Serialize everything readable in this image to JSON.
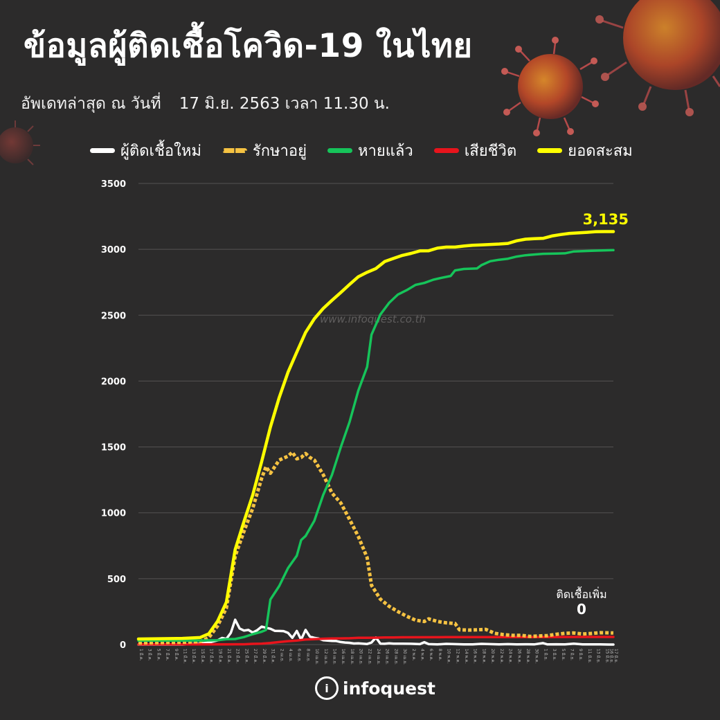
{
  "header": {
    "title": "ข้อมูลผู้ติดเชื้อโควิด-19 ในไทย",
    "updated_label": "อัพเดทล่าสุด ณ วันที่",
    "updated_value": "17 มิ.ย. 2563 เวลา 11.30 น."
  },
  "legend": {
    "items": [
      {
        "label": "ผู้ติดเชื้อใหม่",
        "color": "#ffffff",
        "style": "solid"
      },
      {
        "label": "รักษาอยู่",
        "color": "#f5c242",
        "style": "dashed"
      },
      {
        "label": "หายแล้ว",
        "color": "#16c45a",
        "style": "solid"
      },
      {
        "label": "เสียชีวิต",
        "color": "#e8141c",
        "style": "solid"
      },
      {
        "label": "ยอดสะสม",
        "color": "#ffff00",
        "style": "solid"
      }
    ]
  },
  "annotations": {
    "total_value": "3,135",
    "new_cases_label": "ติดเชื้อเพิ่ม",
    "new_cases_value": "0"
  },
  "watermark": "www.infoquest.co.th",
  "brand": {
    "icon": "info-icon",
    "name": "infoquest"
  },
  "chart_data": {
    "type": "line",
    "ylim": [
      0,
      3500
    ],
    "yticks": [
      0,
      500,
      1000,
      1500,
      2000,
      2500,
      3000,
      3500
    ],
    "grid": true,
    "legend_placement": "top",
    "x_labels": [
      "1 มี.ค.",
      "3 มี.ค.",
      "5 มี.ค.",
      "7 มี.ค.",
      "9 มี.ค.",
      "11 มี.ค.",
      "13 มี.ค.",
      "15 มี.ค.",
      "17 มี.ค.",
      "19 มี.ค.",
      "21 มี.ค.",
      "23 มี.ค.",
      "25 มี.ค.",
      "27 มี.ค.",
      "29 มี.ค.",
      "31 มี.ค.",
      "2 เม.ย.",
      "4 เม.ย.",
      "6 เม.ย.",
      "8 เม.ย.",
      "10 เม.ย.",
      "12 เม.ย.",
      "14 เม.ย.",
      "16 เม.ย.",
      "18 เม.ย.",
      "20 เม.ย.",
      "22 เม.ย.",
      "24 เม.ย.",
      "26 เม.ย.",
      "28 เม.ย.",
      "30 เม.ย.",
      "2 พ.ค.",
      "4 พ.ค.",
      "6 พ.ค.",
      "8 พ.ค.",
      "10 พ.ค.",
      "12 พ.ค.",
      "14 พ.ค.",
      "16 พ.ค.",
      "18 พ.ค.",
      "20 พ.ค.",
      "22 พ.ค.",
      "24 พ.ค.",
      "26 พ.ค.",
      "28 พ.ค.",
      "30 พ.ค.",
      "1 มิ.ย.",
      "3 มิ.ย.",
      "5 มิ.ย.",
      "7 มิ.ย.",
      "9 มิ.ย.",
      "11 มิ.ย.",
      "13 มิ.ย.",
      "15 มิ.ย.",
      "16 มิ.ย.",
      "17 มิ.ย."
    ],
    "x_start": "1 มี.ค.",
    "x_end": "17 มิ.ย.",
    "series": [
      {
        "name": "ยอดสะสม",
        "color": "#ffff00",
        "style": "solid",
        "points": [
          [
            0,
            42
          ],
          [
            10,
            47
          ],
          [
            14,
            53
          ],
          [
            16,
            82
          ],
          [
            18,
            177
          ],
          [
            20,
            322
          ],
          [
            22,
            721
          ],
          [
            24,
            934
          ],
          [
            26,
            1136
          ],
          [
            28,
            1388
          ],
          [
            30,
            1651
          ],
          [
            32,
            1875
          ],
          [
            34,
            2067
          ],
          [
            36,
            2220
          ],
          [
            38,
            2369
          ],
          [
            40,
            2473
          ],
          [
            42,
            2551
          ],
          [
            44,
            2613
          ],
          [
            46,
            2672
          ],
          [
            48,
            2733
          ],
          [
            50,
            2792
          ],
          [
            52,
            2826
          ],
          [
            54,
            2854
          ],
          [
            56,
            2907
          ],
          [
            58,
            2931
          ],
          [
            60,
            2954
          ],
          [
            62,
            2969
          ],
          [
            64,
            2988
          ],
          [
            66,
            2989
          ],
          [
            68,
            3009
          ],
          [
            70,
            3017
          ],
          [
            72,
            3017
          ],
          [
            74,
            3025
          ],
          [
            76,
            3031
          ],
          [
            78,
            3034
          ],
          [
            80,
            3037
          ],
          [
            82,
            3040
          ],
          [
            84,
            3045
          ],
          [
            86,
            3065
          ],
          [
            88,
            3077
          ],
          [
            90,
            3081
          ],
          [
            92,
            3083
          ],
          [
            94,
            3101
          ],
          [
            96,
            3112
          ],
          [
            98,
            3121
          ],
          [
            100,
            3125
          ],
          [
            102,
            3129
          ],
          [
            104,
            3134
          ],
          [
            106,
            3135
          ],
          [
            108,
            3135
          ]
        ]
      },
      {
        "name": "หายแล้ว",
        "color": "#16c45a",
        "style": "solid",
        "points": [
          [
            0,
            30
          ],
          [
            14,
            30
          ],
          [
            18,
            33
          ],
          [
            20,
            41
          ],
          [
            22,
            42
          ],
          [
            24,
            57
          ],
          [
            26,
            79
          ],
          [
            28,
            97
          ],
          [
            29,
            111
          ],
          [
            30,
            342
          ],
          [
            32,
            444
          ],
          [
            34,
            580
          ],
          [
            36,
            674
          ],
          [
            37,
            793
          ],
          [
            38,
            824
          ],
          [
            40,
            940
          ],
          [
            42,
            1135
          ],
          [
            44,
            1288
          ],
          [
            46,
            1497
          ],
          [
            48,
            1689
          ],
          [
            50,
            1928
          ],
          [
            52,
            2108
          ],
          [
            53,
            2352
          ],
          [
            55,
            2505
          ],
          [
            57,
            2594
          ],
          [
            59,
            2657
          ],
          [
            61,
            2690
          ],
          [
            63,
            2730
          ],
          [
            65,
            2745
          ],
          [
            67,
            2769
          ],
          [
            69,
            2784
          ],
          [
            71,
            2798
          ],
          [
            72,
            2840
          ],
          [
            74,
            2851
          ],
          [
            77,
            2855
          ],
          [
            78,
            2880
          ],
          [
            80,
            2910
          ],
          [
            82,
            2921
          ],
          [
            84,
            2929
          ],
          [
            86,
            2945
          ],
          [
            88,
            2955
          ],
          [
            90,
            2961
          ],
          [
            92,
            2966
          ],
          [
            95,
            2968
          ],
          [
            97,
            2970
          ],
          [
            99,
            2984
          ],
          [
            103,
            2989
          ],
          [
            108,
            2994
          ]
        ]
      },
      {
        "name": "รักษาอยู่",
        "color": "#f5c242",
        "style": "dashed",
        "points": [
          [
            0,
            12
          ],
          [
            10,
            17
          ],
          [
            14,
            22
          ],
          [
            16,
            52
          ],
          [
            18,
            142
          ],
          [
            20,
            277
          ],
          [
            22,
            671
          ],
          [
            24,
            859
          ],
          [
            26,
            1035
          ],
          [
            28,
            1262
          ],
          [
            29,
            1350
          ],
          [
            30,
            1300
          ],
          [
            32,
            1400
          ],
          [
            34,
            1430
          ],
          [
            35,
            1460
          ],
          [
            36,
            1410
          ],
          [
            37,
            1420
          ],
          [
            38,
            1450
          ],
          [
            39,
            1420
          ],
          [
            40,
            1400
          ],
          [
            42,
            1290
          ],
          [
            44,
            1150
          ],
          [
            46,
            1075
          ],
          [
            48,
            950
          ],
          [
            50,
            820
          ],
          [
            52,
            660
          ],
          [
            53,
            450
          ],
          [
            55,
            345
          ],
          [
            57,
            290
          ],
          [
            59,
            250
          ],
          [
            61,
            215
          ],
          [
            63,
            185
          ],
          [
            65,
            175
          ],
          [
            66,
            195
          ],
          [
            68,
            175
          ],
          [
            70,
            165
          ],
          [
            72,
            160
          ],
          [
            73,
            112
          ],
          [
            75,
            110
          ],
          [
            77,
            112
          ],
          [
            79,
            115
          ],
          [
            81,
            85
          ],
          [
            83,
            75
          ],
          [
            85,
            70
          ],
          [
            87,
            70
          ],
          [
            89,
            62
          ],
          [
            91,
            65
          ],
          [
            93,
            68
          ],
          [
            95,
            78
          ],
          [
            97,
            85
          ],
          [
            99,
            88
          ],
          [
            101,
            80
          ],
          [
            103,
            84
          ],
          [
            105,
            90
          ],
          [
            108,
            88
          ]
        ]
      },
      {
        "name": "เสียชีวิต",
        "color": "#e8141c",
        "style": "solid",
        "points": [
          [
            0,
            1
          ],
          [
            10,
            1
          ],
          [
            18,
            1
          ],
          [
            20,
            1
          ],
          [
            22,
            2
          ],
          [
            24,
            2
          ],
          [
            26,
            5
          ],
          [
            28,
            7
          ],
          [
            30,
            12
          ],
          [
            32,
            19
          ],
          [
            34,
            26
          ],
          [
            36,
            30
          ],
          [
            38,
            38
          ],
          [
            40,
            41
          ],
          [
            42,
            44
          ],
          [
            44,
            46
          ],
          [
            46,
            47
          ],
          [
            48,
            48
          ],
          [
            50,
            51
          ],
          [
            52,
            51
          ],
          [
            54,
            52
          ],
          [
            56,
            54
          ],
          [
            58,
            54
          ],
          [
            60,
            55
          ],
          [
            70,
            56
          ],
          [
            80,
            56
          ],
          [
            90,
            57
          ],
          [
            100,
            58
          ],
          [
            108,
            58
          ]
        ]
      },
      {
        "name": "ผู้ติดเชื้อใหม่",
        "color": "#ffffff",
        "style": "solid",
        "points": [
          [
            0,
            0
          ],
          [
            10,
            0
          ],
          [
            14,
            6
          ],
          [
            16,
            16
          ],
          [
            18,
            32
          ],
          [
            19,
            50
          ],
          [
            20,
            43
          ],
          [
            21,
            89
          ],
          [
            22,
            188
          ],
          [
            23,
            122
          ],
          [
            24,
            106
          ],
          [
            25,
            111
          ],
          [
            26,
            91
          ],
          [
            27,
            109
          ],
          [
            28,
            136
          ],
          [
            29,
            127
          ],
          [
            30,
            120
          ],
          [
            31,
            104
          ],
          [
            32,
            103
          ],
          [
            33,
            102
          ],
          [
            34,
            89
          ],
          [
            35,
            51
          ],
          [
            36,
            103
          ],
          [
            37,
            38
          ],
          [
            38,
            111
          ],
          [
            39,
            60
          ],
          [
            40,
            51
          ],
          [
            41,
            45
          ],
          [
            42,
            33
          ],
          [
            43,
            30
          ],
          [
            44,
            28
          ],
          [
            45,
            27
          ],
          [
            46,
            19
          ],
          [
            47,
            15
          ],
          [
            48,
            13
          ],
          [
            49,
            8
          ],
          [
            50,
            9
          ],
          [
            51,
            7
          ],
          [
            52,
            4
          ],
          [
            53,
            15
          ],
          [
            54,
            53
          ],
          [
            55,
            7
          ],
          [
            56,
            6
          ],
          [
            57,
            9
          ],
          [
            58,
            7
          ],
          [
            60,
            7
          ],
          [
            62,
            6
          ],
          [
            64,
            3
          ],
          [
            65,
            18
          ],
          [
            66,
            3
          ],
          [
            68,
            1
          ],
          [
            70,
            5
          ],
          [
            72,
            3
          ],
          [
            74,
            1
          ],
          [
            76,
            1
          ],
          [
            78,
            5
          ],
          [
            80,
            3
          ],
          [
            82,
            1
          ],
          [
            84,
            3
          ],
          [
            86,
            1
          ],
          [
            88,
            2
          ],
          [
            90,
            1
          ],
          [
            92,
            11
          ],
          [
            93,
            1
          ],
          [
            95,
            2
          ],
          [
            97,
            1
          ],
          [
            99,
            7
          ],
          [
            101,
            1
          ],
          [
            103,
            1
          ],
          [
            105,
            1
          ],
          [
            107,
            0
          ],
          [
            108,
            0
          ]
        ]
      }
    ]
  }
}
